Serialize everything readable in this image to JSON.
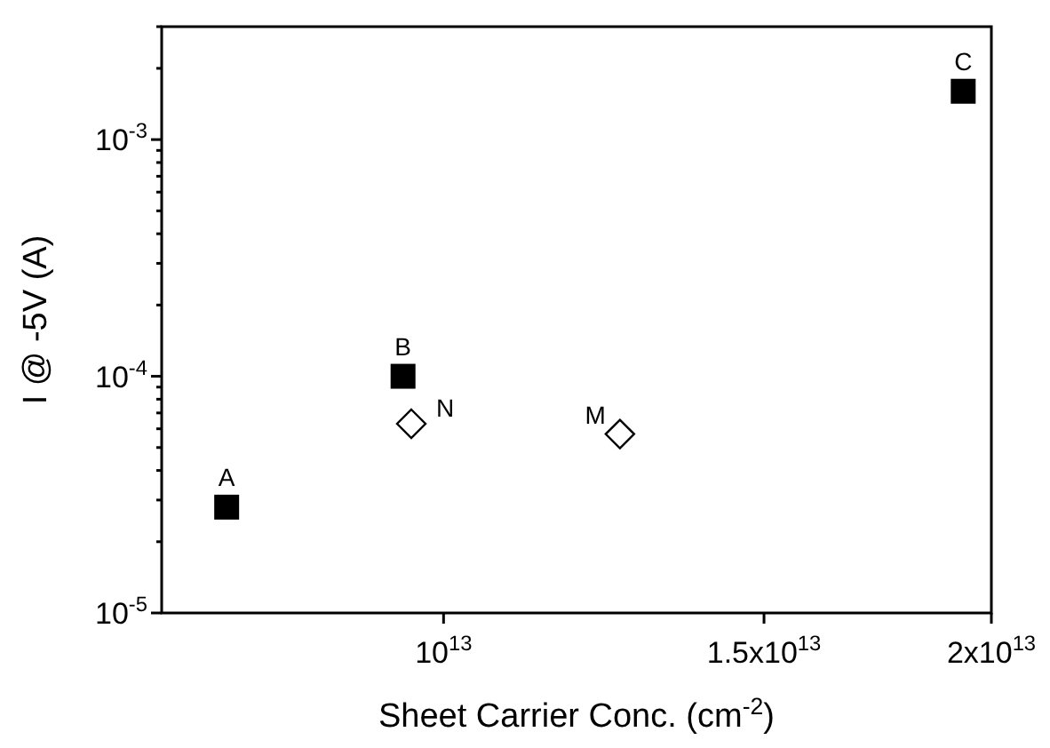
{
  "chart_data": {
    "type": "scatter",
    "xlabel": "Sheet Carrier Conc. (cm$^{-2}$)",
    "ylabel": "I @ -5V (A)",
    "log": "xy",
    "grid": false,
    "xlim": [
      7000000000000.0,
      20000000000000.0
    ],
    "ylim": [
      1e-05,
      0.003
    ],
    "xticks": [
      {
        "value": 10000000000000.0,
        "label": "10$^{13}$"
      },
      {
        "value": 15000000000000.0,
        "label": "1.5x10$^{13}$"
      },
      {
        "value": 20000000000000.0,
        "label": "2x10$^{13}$"
      }
    ],
    "yticks": [
      {
        "value": 1e-05,
        "label": "10$^{-5}$"
      },
      {
        "value": 2e-05,
        "label": null
      },
      {
        "value": 3e-05,
        "label": null
      },
      {
        "value": 4e-05,
        "label": null
      },
      {
        "value": 5e-05,
        "label": null
      },
      {
        "value": 6e-05,
        "label": null
      },
      {
        "value": 7e-05,
        "label": null
      },
      {
        "value": 8e-05,
        "label": null
      },
      {
        "value": 9e-05,
        "label": null
      },
      {
        "value": 0.0001,
        "label": "10$^{-4}$"
      },
      {
        "value": 0.0002,
        "label": null
      },
      {
        "value": 0.0003,
        "label": null
      },
      {
        "value": 0.0004,
        "label": null
      },
      {
        "value": 0.0005,
        "label": null
      },
      {
        "value": 0.0006,
        "label": null
      },
      {
        "value": 0.0007,
        "label": null
      },
      {
        "value": 0.0008,
        "label": null
      },
      {
        "value": 0.0009,
        "label": null
      },
      {
        "value": 0.001,
        "label": "10$^{-3}$"
      },
      {
        "value": 0.002,
        "label": null
      },
      {
        "value": 0.003,
        "label": null
      }
    ],
    "series": [
      {
        "color": "#000000",
        "marker": "square",
        "x": [
          7600000000000.0,
          9500000000000.0,
          19300000000000.0
        ],
        "values": [
          2.8e-05,
          0.0001,
          0.0016
        ]
      },
      {
        "color": "#000000",
        "marker": "diamond",
        "x": [
          9600000000000.0,
          12500000000000.0
        ],
        "values": [
          6.3e-05,
          5.7e-05
        ]
      }
    ],
    "annotations": [
      {
        "text": "A",
        "x": 7600000000000.0,
        "y": 2.8e-05
      },
      {
        "text": "B",
        "x": 9500000000000.0,
        "y": 0.0001
      },
      {
        "text": "C",
        "x": 19300000000000.0,
        "y": 0.0016
      },
      {
        "text": "N",
        "x": 9600000000000.0,
        "y": 6.3e-05
      },
      {
        "text": "M",
        "x": 12500000000000.0,
        "y": 5.7e-05
      }
    ]
  }
}
